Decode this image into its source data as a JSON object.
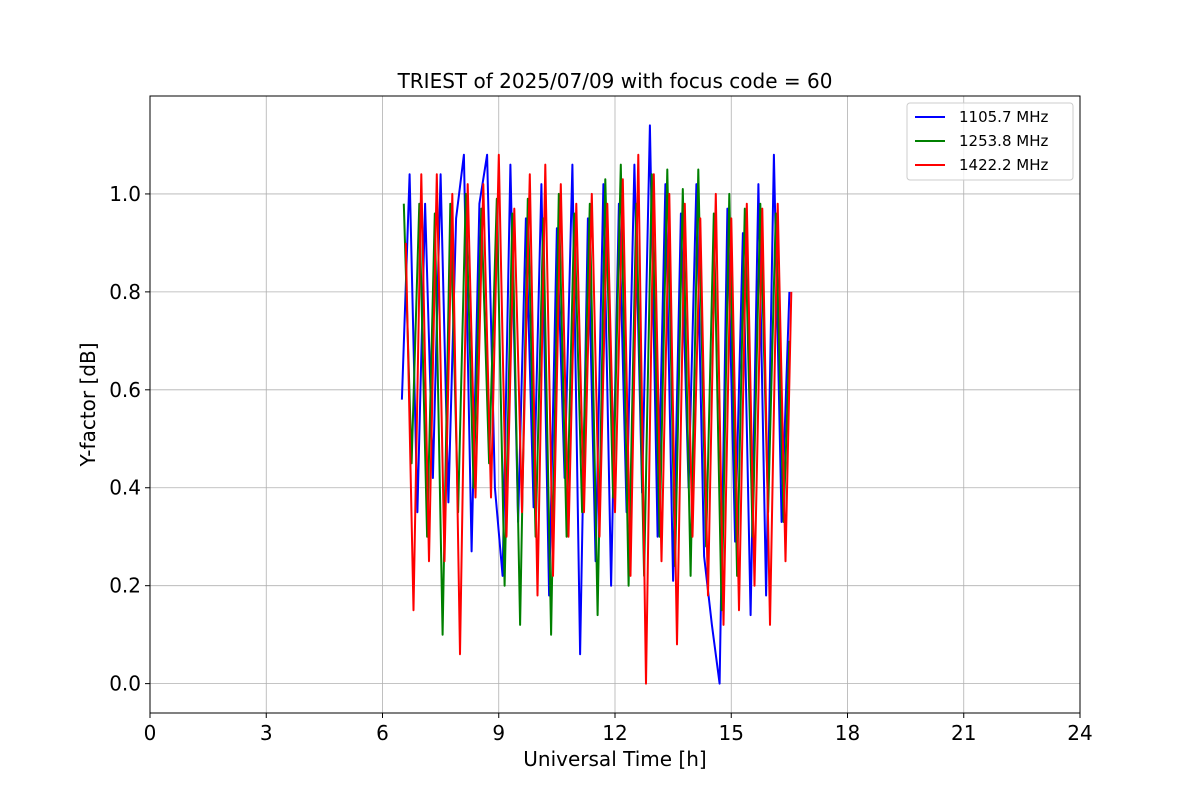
{
  "chart_data": {
    "type": "line",
    "title": "TRIEST of 2025/07/09 with focus code = 60",
    "xlabel": "Universal Time [h]",
    "ylabel": "Y-factor [dB]",
    "xlim": [
      0,
      24
    ],
    "ylim": [
      -0.06,
      1.2
    ],
    "xticks": [
      0,
      3,
      6,
      9,
      12,
      15,
      18,
      21,
      24
    ],
    "yticks": [
      0.0,
      0.2,
      0.4,
      0.6,
      0.8,
      1.0
    ],
    "grid": true,
    "legend_position": "top-right",
    "series": [
      {
        "name": "1105.7 MHz",
        "color": "#0000ff",
        "x": [
          6.5,
          6.7,
          6.9,
          7.1,
          7.3,
          7.5,
          7.7,
          7.9,
          8.1,
          8.3,
          8.5,
          8.7,
          8.9,
          9.1,
          9.3,
          9.5,
          9.7,
          9.9,
          10.1,
          10.3,
          10.5,
          10.7,
          10.9,
          11.1,
          11.3,
          11.5,
          11.7,
          11.9,
          12.1,
          12.3,
          12.5,
          12.7,
          12.9,
          13.1,
          13.3,
          13.5,
          13.7,
          13.9,
          14.1,
          14.3,
          14.5,
          14.7,
          14.9,
          15.1,
          15.3,
          15.5,
          15.7,
          15.9,
          16.1,
          16.3,
          16.5
        ],
        "y": [
          0.58,
          1.04,
          0.35,
          0.98,
          0.42,
          1.04,
          0.37,
          0.95,
          1.08,
          0.27,
          0.98,
          1.08,
          0.4,
          0.22,
          1.06,
          0.33,
          0.95,
          0.36,
          1.02,
          0.18,
          0.93,
          0.42,
          1.06,
          0.06,
          0.95,
          0.25,
          1.02,
          0.2,
          0.98,
          0.35,
          1.06,
          0.39,
          1.14,
          0.3,
          1.02,
          0.21,
          0.96,
          0.4,
          1.02,
          0.26,
          0.12,
          0.0,
          0.97,
          0.29,
          0.92,
          0.14,
          1.02,
          0.18,
          1.08,
          0.33,
          0.8
        ]
      },
      {
        "name": "1253.8 MHz",
        "color": "#008000",
        "x": [
          6.55,
          6.75,
          6.95,
          7.15,
          7.35,
          7.55,
          7.75,
          7.95,
          8.15,
          8.35,
          8.55,
          8.75,
          8.95,
          9.15,
          9.35,
          9.55,
          9.75,
          9.95,
          10.15,
          10.35,
          10.55,
          10.75,
          10.95,
          11.15,
          11.35,
          11.55,
          11.75,
          11.95,
          12.15,
          12.35,
          12.55,
          12.75,
          12.95,
          13.15,
          13.35,
          13.55,
          13.75,
          13.95,
          14.15,
          14.35,
          14.55,
          14.75,
          14.95,
          15.15,
          15.35,
          15.55,
          15.75,
          15.95,
          16.15,
          16.35,
          16.5
        ],
        "y": [
          0.98,
          0.45,
          0.98,
          0.3,
          0.96,
          0.1,
          0.98,
          0.35,
          1.0,
          0.4,
          0.97,
          0.45,
          0.99,
          0.2,
          0.96,
          0.12,
          0.99,
          0.3,
          0.95,
          0.1,
          1.0,
          0.3,
          0.96,
          0.35,
          0.98,
          0.14,
          1.03,
          0.38,
          1.06,
          0.2,
          0.98,
          0.22,
          1.04,
          0.3,
          1.05,
          0.24,
          1.01,
          0.22,
          1.05,
          0.28,
          0.96,
          0.15,
          1.0,
          0.22,
          0.97,
          0.3,
          0.98,
          0.35,
          0.96,
          0.33,
          0.7
        ]
      },
      {
        "name": "1422.2 MHz",
        "color": "#ff0000",
        "x": [
          6.6,
          6.8,
          7.0,
          7.2,
          7.4,
          7.6,
          7.8,
          8.0,
          8.2,
          8.4,
          8.6,
          8.8,
          9.0,
          9.2,
          9.4,
          9.6,
          9.8,
          10.0,
          10.2,
          10.4,
          10.6,
          10.8,
          11.0,
          11.2,
          11.4,
          11.6,
          11.8,
          12.0,
          12.2,
          12.4,
          12.6,
          12.8,
          13.0,
          13.2,
          13.4,
          13.6,
          13.8,
          14.0,
          14.2,
          14.4,
          14.6,
          14.8,
          15.0,
          15.2,
          15.4,
          15.6,
          15.8,
          16.0,
          16.2,
          16.4,
          16.55
        ],
        "y": [
          0.9,
          0.15,
          1.04,
          0.25,
          1.04,
          0.25,
          1.0,
          0.06,
          1.02,
          0.38,
          1.02,
          0.38,
          1.08,
          0.3,
          0.97,
          0.35,
          1.04,
          0.18,
          1.06,
          0.22,
          1.02,
          0.3,
          0.98,
          0.35,
          1.0,
          0.3,
          0.98,
          0.35,
          1.03,
          0.22,
          1.08,
          0.0,
          1.04,
          0.25,
          1.0,
          0.08,
          0.98,
          0.3,
          0.95,
          0.18,
          1.0,
          0.12,
          0.95,
          0.15,
          0.98,
          0.2,
          0.97,
          0.12,
          0.98,
          0.25,
          0.8
        ]
      }
    ]
  }
}
